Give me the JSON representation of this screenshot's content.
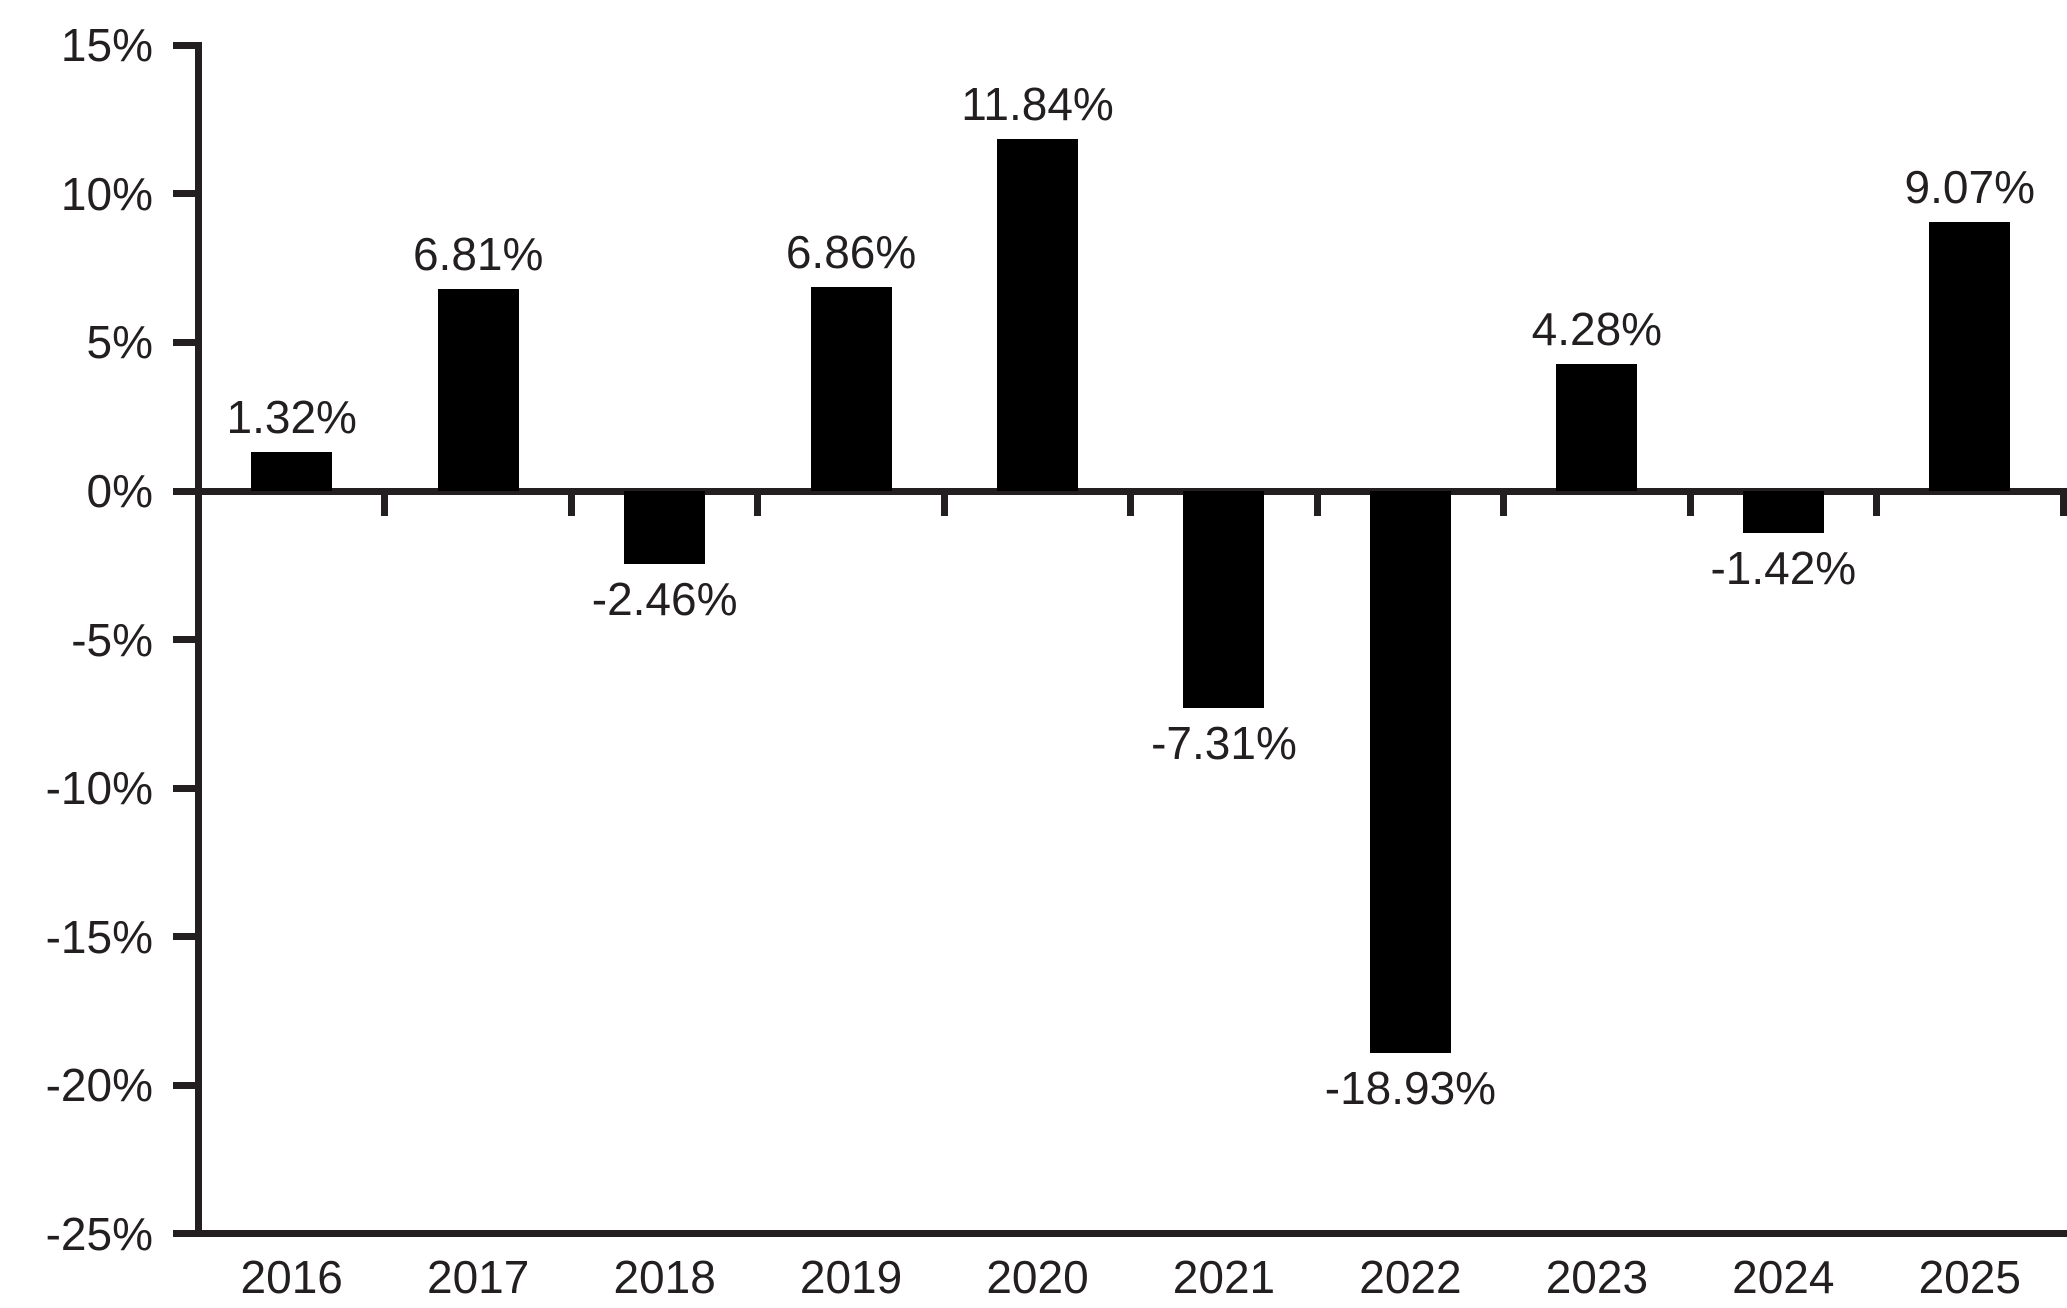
{
  "chart_data": {
    "type": "bar",
    "title": "",
    "xlabel": "",
    "ylabel": "",
    "categories": [
      "2016",
      "2017",
      "2018",
      "2019",
      "2020",
      "2021",
      "2022",
      "2023",
      "2024",
      "2025"
    ],
    "values": [
      1.32,
      6.81,
      -2.46,
      6.86,
      11.84,
      -7.31,
      -18.93,
      4.28,
      -1.42,
      9.07
    ],
    "bar_labels": [
      "1.32%",
      "6.81%",
      "-2.46%",
      "6.86%",
      "11.84%",
      "-7.31%",
      "-18.93%",
      "4.28%",
      "-1.42%",
      "9.07%"
    ],
    "ylim": [
      -25,
      15
    ],
    "ytick_step": 5,
    "yticks": [
      {
        "value": 15,
        "label": "15%"
      },
      {
        "value": 10,
        "label": "10%"
      },
      {
        "value": 5,
        "label": "5%"
      },
      {
        "value": 0,
        "label": "0%"
      },
      {
        "value": -5,
        "label": "-5%"
      },
      {
        "value": -10,
        "label": "-10%"
      },
      {
        "value": -15,
        "label": "-15%"
      },
      {
        "value": -20,
        "label": "-20%"
      },
      {
        "value": -25,
        "label": "-25%"
      }
    ],
    "grid": false,
    "legend": false,
    "label_position": "outside-end",
    "colors": {
      "bar": "#000000",
      "axis": "#231f20",
      "text": "#231f20",
      "background": "#ffffff"
    }
  }
}
